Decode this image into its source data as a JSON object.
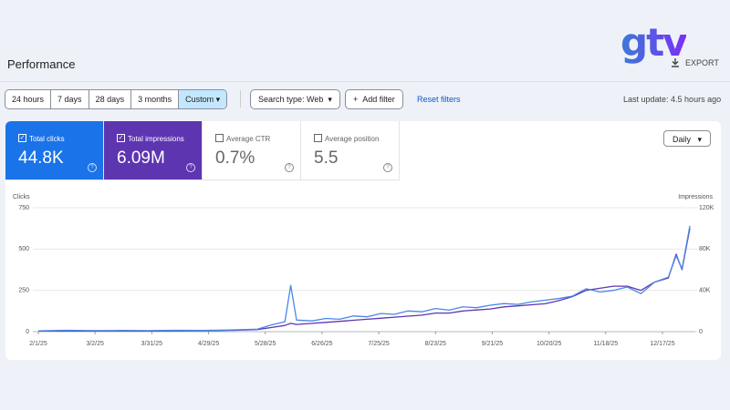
{
  "header": {
    "title": "Performance",
    "logo": "gtv",
    "export": "EXPORT"
  },
  "filters": {
    "date_ranges": [
      "24 hours",
      "7 days",
      "28 days",
      "3 months",
      "Custom"
    ],
    "selected_range": 4,
    "search_type": "Search type: Web",
    "add_filter": "Add filter",
    "reset": "Reset filters",
    "last_update": "Last update: 4.5 hours ago"
  },
  "cards": [
    {
      "label": "Total clicks",
      "value": "44.8K",
      "checked": true,
      "color": "#1a73e8"
    },
    {
      "label": "Total impressions",
      "value": "6.09M",
      "checked": true,
      "color": "#5e35b1"
    },
    {
      "label": "Average CTR",
      "value": "0.7%",
      "checked": false
    },
    {
      "label": "Average position",
      "value": "5.5",
      "checked": false
    }
  ],
  "granularity": "Daily",
  "chart_data": {
    "type": "line",
    "y_label": "Clicks",
    "y2_label": "Impressions",
    "x": [
      "2/1/25",
      "2/15/25",
      "3/1/25",
      "3/15/25",
      "3/29/25",
      "4/12/25",
      "4/26/25",
      "5/10/25",
      "5/24/25",
      "5/31/25",
      "6/7/25",
      "6/10/25",
      "6/13/25",
      "6/21/25",
      "6/28/25",
      "7/5/25",
      "7/12/25",
      "7/19/25",
      "7/26/25",
      "8/2/25",
      "8/9/25",
      "8/16/25",
      "8/23/25",
      "8/30/25",
      "9/6/25",
      "9/13/25",
      "9/20/25",
      "9/27/25",
      "10/4/25",
      "10/11/25",
      "10/18/25",
      "10/25/25",
      "11/1/25",
      "11/8/25",
      "11/15/25",
      "11/22/25",
      "11/29/25",
      "12/6/25",
      "12/13/25",
      "12/20/25",
      "12/24/25",
      "12/27/25",
      "12/31/25"
    ],
    "xlim": [
      "2/1/25",
      "12/31/25"
    ],
    "xticks": [
      "2/1/25",
      "3/2/25",
      "3/31/25",
      "4/29/25",
      "5/28/25",
      "6/26/25",
      "7/25/25",
      "8/23/25",
      "9/21/25",
      "10/20/25",
      "11/18/25",
      "12/17/25"
    ],
    "ylim": [
      0,
      750
    ],
    "yticks": [
      0,
      250,
      500,
      750
    ],
    "y2lim": [
      0,
      120000
    ],
    "y2ticks": [
      0,
      {
        "value": 40000,
        "label": "40K"
      },
      {
        "value": 80000,
        "label": "80K"
      },
      {
        "value": 120000,
        "label": "120K"
      }
    ],
    "grid": true,
    "series": [
      {
        "color": "#4a86e8",
        "values": [
          5,
          8,
          6,
          7,
          6,
          8,
          7,
          10,
          15,
          40,
          60,
          280,
          70,
          65,
          80,
          75,
          95,
          90,
          110,
          105,
          125,
          120,
          140,
          130,
          150,
          145,
          160,
          170,
          165,
          180,
          190,
          200,
          215,
          260,
          240,
          250,
          270,
          230,
          300,
          330,
          460,
          380,
          640
        ]
      },
      {
        "color": "#5e35b1",
        "axis": "y2",
        "values": [
          500,
          700,
          600,
          700,
          600,
          800,
          800,
          1200,
          2000,
          4000,
          6000,
          8000,
          7000,
          8000,
          9000,
          10000,
          11000,
          12000,
          13000,
          14000,
          15000,
          16000,
          18000,
          18000,
          20000,
          21000,
          22000,
          24000,
          25000,
          26000,
          27000,
          30000,
          34000,
          40000,
          42000,
          44000,
          44000,
          40000,
          48000,
          52000,
          75000,
          60000,
          100000
        ]
      }
    ]
  }
}
